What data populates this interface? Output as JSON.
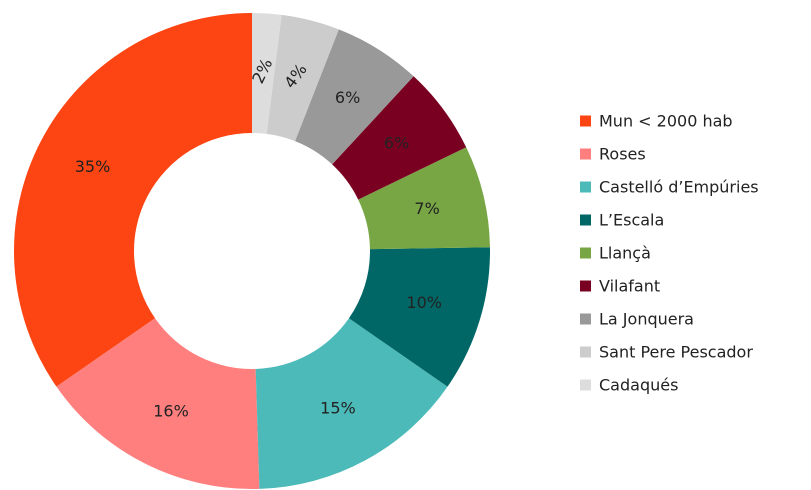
{
  "chart_data": {
    "type": "donut",
    "categories": [
      "Mun < 2000 hab",
      "Roses",
      "Castelló d’Empúries",
      "L’Escala",
      "Llançà",
      "Vilafant",
      "La Jonquera",
      "Sant Pere Pescador",
      "Cadaqués"
    ],
    "values": [
      35,
      16,
      15,
      10,
      7,
      6,
      6,
      4,
      2
    ],
    "value_labels": [
      "35%",
      "16%",
      "15%",
      "10%",
      "7%",
      "6%",
      "6%",
      "4%",
      "2%"
    ],
    "colors": [
      "#fc4513",
      "#ff7f7f",
      "#4bbab8",
      "#006666",
      "#78a645",
      "#7a0022",
      "#999999",
      "#cccccc",
      "#dddddd"
    ],
    "legend": "right"
  }
}
